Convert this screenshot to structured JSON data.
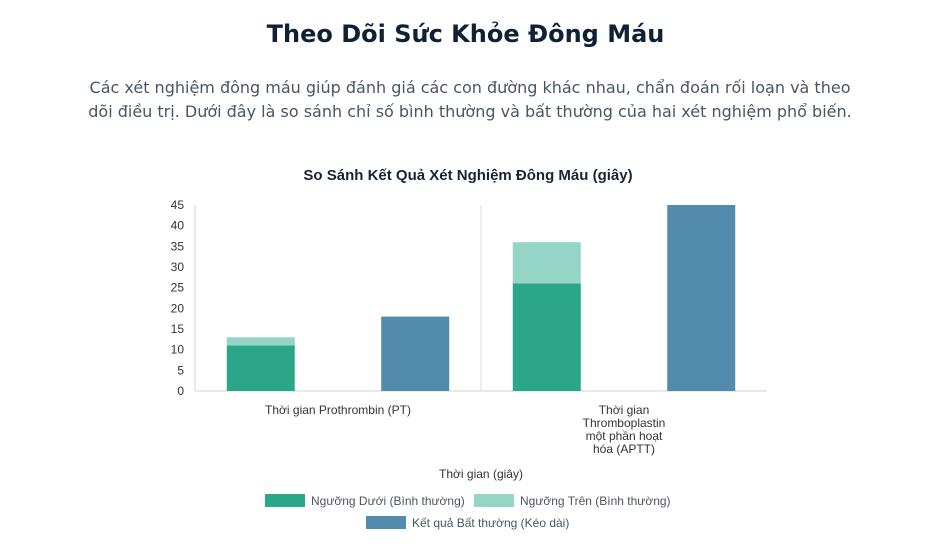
{
  "page": {
    "title": "Theo Dõi Sức Khỏe Đông Máu",
    "intro": "Các xét nghiệm đông máu giúp đánh giá các con đường khác nhau, chẩn đoán rối loạn và theo dõi điều trị. Dưới đây là so sánh chỉ số bình thường và bất thường của hai xét nghiệm phổ biến."
  },
  "chart_data": {
    "type": "bar",
    "title": "So Sánh Kết Quả Xét Nghiệm Đông Máu (giây)",
    "xlabel": "Thời gian (giây)",
    "ylabel": "",
    "ylim": [
      0,
      45
    ],
    "yticks": [
      0,
      5,
      10,
      15,
      20,
      25,
      30,
      35,
      40,
      45
    ],
    "grid": false,
    "legend_position": "bottom",
    "categories": [
      [
        "Thời gian Prothrombin (PT)"
      ],
      [
        "Thời gian",
        "Thromboplastin",
        "một phần hoạt",
        "hóa (APTT)"
      ]
    ],
    "series": [
      {
        "name": "Ngưỡng Dưới (Bình thường)",
        "color": "#2ba688",
        "values": [
          11,
          26
        ],
        "stack": "normal"
      },
      {
        "name": "Ngưỡng Trên (Bình thường)",
        "color": "#95d5c5",
        "values": [
          2,
          10
        ],
        "stack": "normal"
      },
      {
        "name": "Kết quả Bất thường (Kéo dài)",
        "color": "#538bad",
        "values": [
          18,
          45
        ],
        "stack": "abnormal"
      }
    ]
  }
}
